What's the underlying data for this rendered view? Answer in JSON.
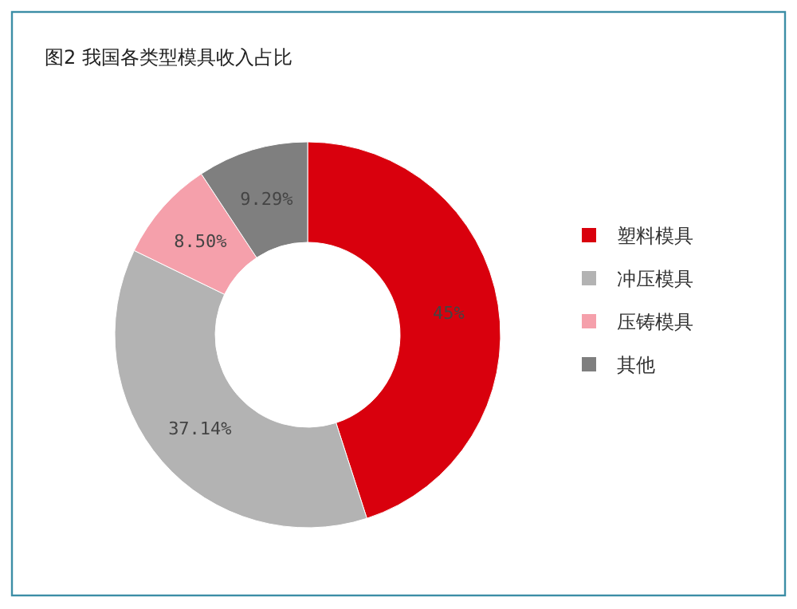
{
  "chart_data": {
    "type": "donut",
    "title": "图2 我国各类型模具收入占比",
    "categories": [
      "塑料模具",
      "冲压模具",
      "压铸模具",
      "其他"
    ],
    "values": [
      45,
      37.14,
      8.5,
      9.29
    ],
    "value_labels": [
      "45%",
      "37.14%",
      "8.50%",
      "9.29%"
    ],
    "colors": [
      "#d9000d",
      "#b3b3b3",
      "#f5a0ab",
      "#7f7f7f"
    ],
    "legend": "right"
  }
}
